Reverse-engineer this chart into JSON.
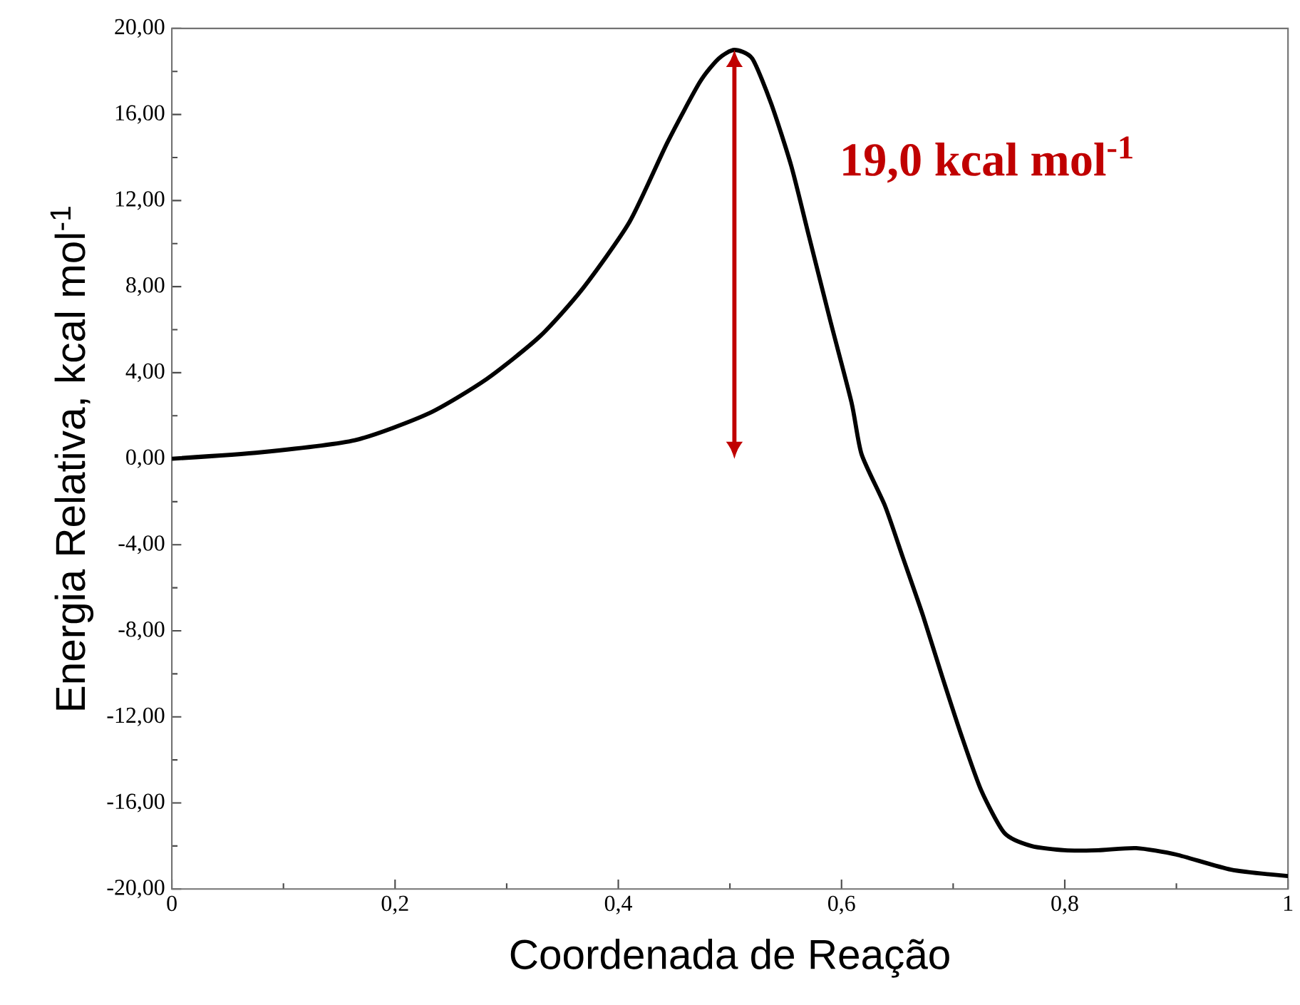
{
  "chart_data": {
    "type": "line",
    "xlabel": "Coordenada de Reação",
    "ylabel": "Energia Relativa, kcal mol$^{-1}$",
    "x": [
      0,
      0.08,
      0.164,
      0.23,
      0.282,
      0.33,
      0.368,
      0.41,
      0.444,
      0.473,
      0.49,
      0.504,
      0.52,
      0.537,
      0.555,
      0.571,
      0.59,
      0.609,
      0.618,
      0.639,
      0.655,
      0.673,
      0.69,
      0.707,
      0.725,
      0.746,
      0.77,
      0.8,
      0.83,
      0.864,
      0.9,
      0.949,
      1.0
    ],
    "series": [
      {
        "color": "#000000",
        "values": [
          0,
          0.3,
          0.86,
          2.1,
          3.7,
          5.7,
          7.9,
          11.0,
          14.7,
          17.5,
          18.6,
          19.0,
          18.6,
          16.5,
          13.6,
          10.3,
          6.4,
          2.6,
          0.2,
          -2.2,
          -4.6,
          -7.3,
          -10.1,
          -12.8,
          -15.4,
          -17.4,
          -18.0,
          -18.2,
          -18.2,
          -18.1,
          -18.4,
          -19.1,
          -19.4
        ]
      }
    ],
    "xlim": [
      0,
      1
    ],
    "ylim": [
      -20,
      20
    ],
    "xticks": [
      {
        "value": 0,
        "label": "0"
      },
      {
        "value": 0.2,
        "label": "0,2"
      },
      {
        "value": 0.4,
        "label": "0,4"
      },
      {
        "value": 0.6,
        "label": "0,6"
      },
      {
        "value": 0.8,
        "label": "0,8"
      },
      {
        "value": 1,
        "label": "1"
      }
    ],
    "yticks": [
      {
        "value": -20,
        "label": "-20,00"
      },
      {
        "value": -16,
        "label": "-16,00"
      },
      {
        "value": -12,
        "label": "-12,00"
      },
      {
        "value": -8,
        "label": "-8,00"
      },
      {
        "value": -4,
        "label": "-4,00"
      },
      {
        "value": 0,
        "label": "0,00"
      },
      {
        "value": 4,
        "label": "4,00"
      },
      {
        "value": 8,
        "label": "8,00"
      },
      {
        "value": 12,
        "label": "12,00"
      },
      {
        "value": 16,
        "label": "16,00"
      },
      {
        "value": 20,
        "label": "20,00"
      }
    ],
    "annotations": [
      {
        "text": "19,0 kcal mol$^{-1}$",
        "x": 0.504,
        "y": 19.0
      }
    ],
    "grid": false,
    "marker": "none",
    "line_style": "solid"
  }
}
